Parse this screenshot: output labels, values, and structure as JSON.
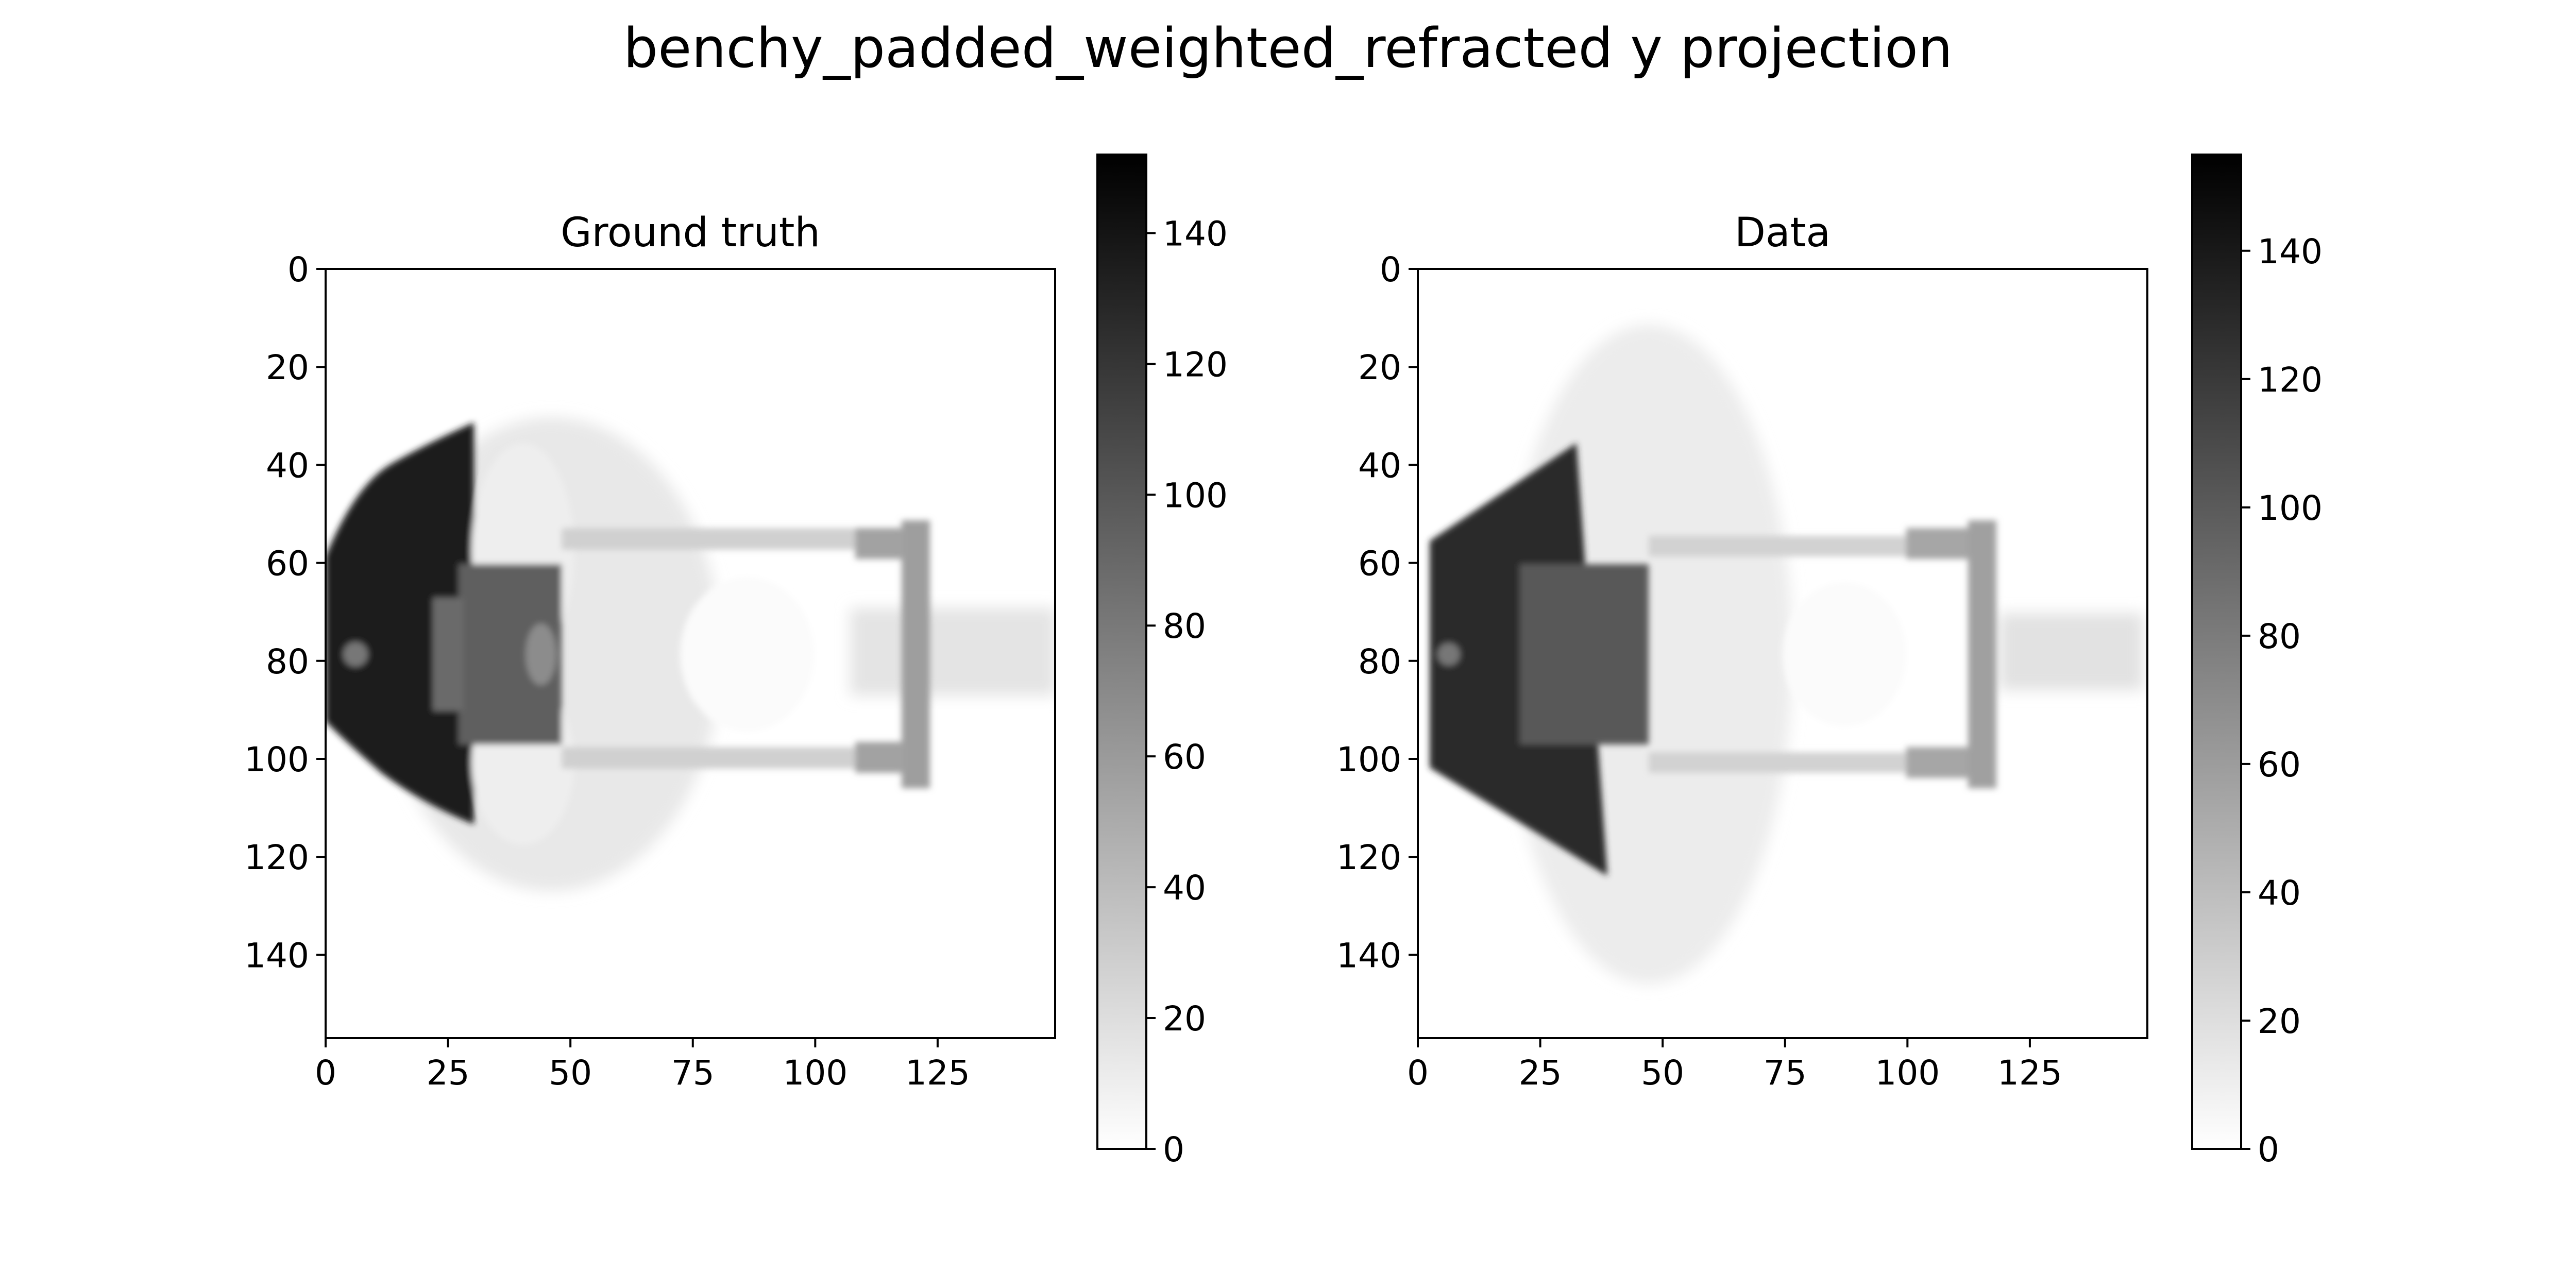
{
  "figure": {
    "title": "benchy_padded_weighted_refracted y projection"
  },
  "chart_data": [
    {
      "type": "heatmap",
      "title": "Ground truth",
      "xlabel": "",
      "ylabel": "",
      "x_range": [
        0,
        149
      ],
      "y_range": [
        0,
        157
      ],
      "y_inverted": true,
      "x_ticks": [
        0,
        25,
        50,
        75,
        100,
        125
      ],
      "y_ticks": [
        0,
        20,
        40,
        60,
        80,
        100,
        120,
        140
      ],
      "colormap": "gray_r",
      "colorbar": {
        "range": [
          0,
          152
        ],
        "ticks": [
          0,
          20,
          40,
          60,
          80,
          100,
          120,
          140
        ]
      }
    },
    {
      "type": "heatmap",
      "title": "Data",
      "xlabel": "",
      "ylabel": "",
      "x_range": [
        0,
        149
      ],
      "y_range": [
        0,
        157
      ],
      "y_inverted": true,
      "x_ticks": [
        0,
        25,
        50,
        75,
        100,
        125
      ],
      "y_ticks": [
        0,
        20,
        40,
        60,
        80,
        100,
        120,
        140
      ],
      "colormap": "gray_r",
      "colorbar": {
        "range": [
          0,
          155
        ],
        "ticks": [
          0,
          20,
          40,
          60,
          80,
          100,
          120,
          140
        ]
      }
    }
  ]
}
